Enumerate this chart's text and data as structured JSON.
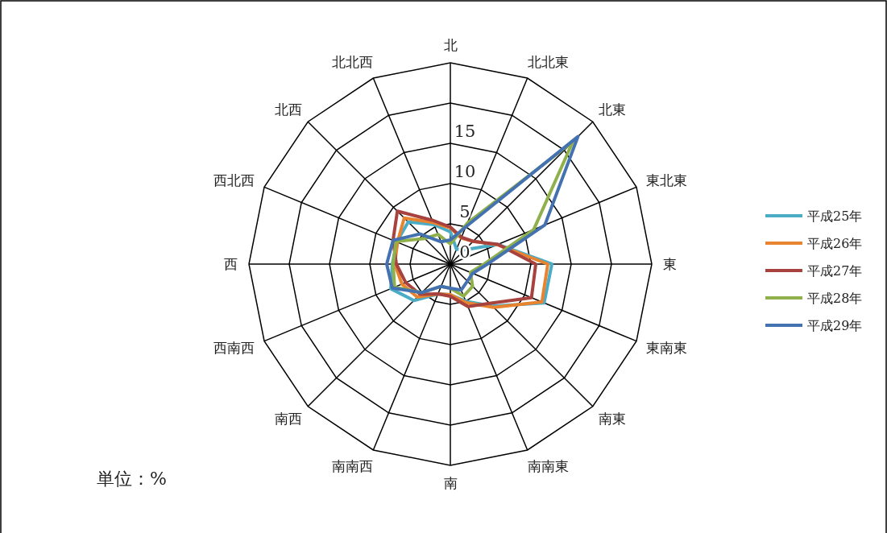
{
  "chart_data": {
    "type": "radar",
    "categories": [
      "北",
      "北北東",
      "北東",
      "東北東",
      "東",
      "東南東",
      "南東",
      "南南東",
      "南",
      "南南西",
      "南西",
      "西南西",
      "西",
      "西北西",
      "北西",
      "北北西"
    ],
    "series": [
      {
        "name": "平成25年",
        "color": "#4bacc6",
        "values": [
          4,
          2,
          2.5,
          6.4,
          12.6,
          12.6,
          7.4,
          5,
          3.8,
          4,
          6.4,
          8,
          7.2,
          7.2,
          7.4,
          5.3
        ]
      },
      {
        "name": "平成26年",
        "color": "#e8832f",
        "values": [
          4.5,
          3.5,
          4,
          6.3,
          12.1,
          12.3,
          7.6,
          5.2,
          3.8,
          4,
          5.8,
          6.5,
          6.9,
          7.1,
          8.1,
          5.6
        ]
      },
      {
        "name": "平成27年",
        "color": "#a8423f",
        "values": [
          4.6,
          3.6,
          4,
          6.4,
          10.6,
          10.9,
          6.9,
          5.7,
          4,
          4,
          5.3,
          6,
          6.7,
          7.7,
          9.3,
          5.9
        ]
      },
      {
        "name": "平成28年",
        "color": "#8fb04a",
        "values": [
          2.5,
          5.5,
          21.5,
          11.2,
          4.2,
          2.7,
          3.9,
          4.3,
          3,
          3,
          5,
          7.5,
          7.1,
          7.3,
          4.5,
          4
        ]
      },
      {
        "name": "平成29年",
        "color": "#4472b0",
        "values": [
          3,
          5,
          22.4,
          12.7,
          4.6,
          3,
          3,
          3.5,
          3,
          3,
          5,
          7.8,
          7.9,
          7.7,
          5.3,
          3
        ]
      }
    ],
    "ylim": [
      0,
      25
    ],
    "yticks": [
      0,
      5,
      10,
      15
    ],
    "grid": true,
    "legend": "right",
    "line_style": "solid",
    "marker": "none",
    "annotations": [
      "単位：%"
    ]
  }
}
